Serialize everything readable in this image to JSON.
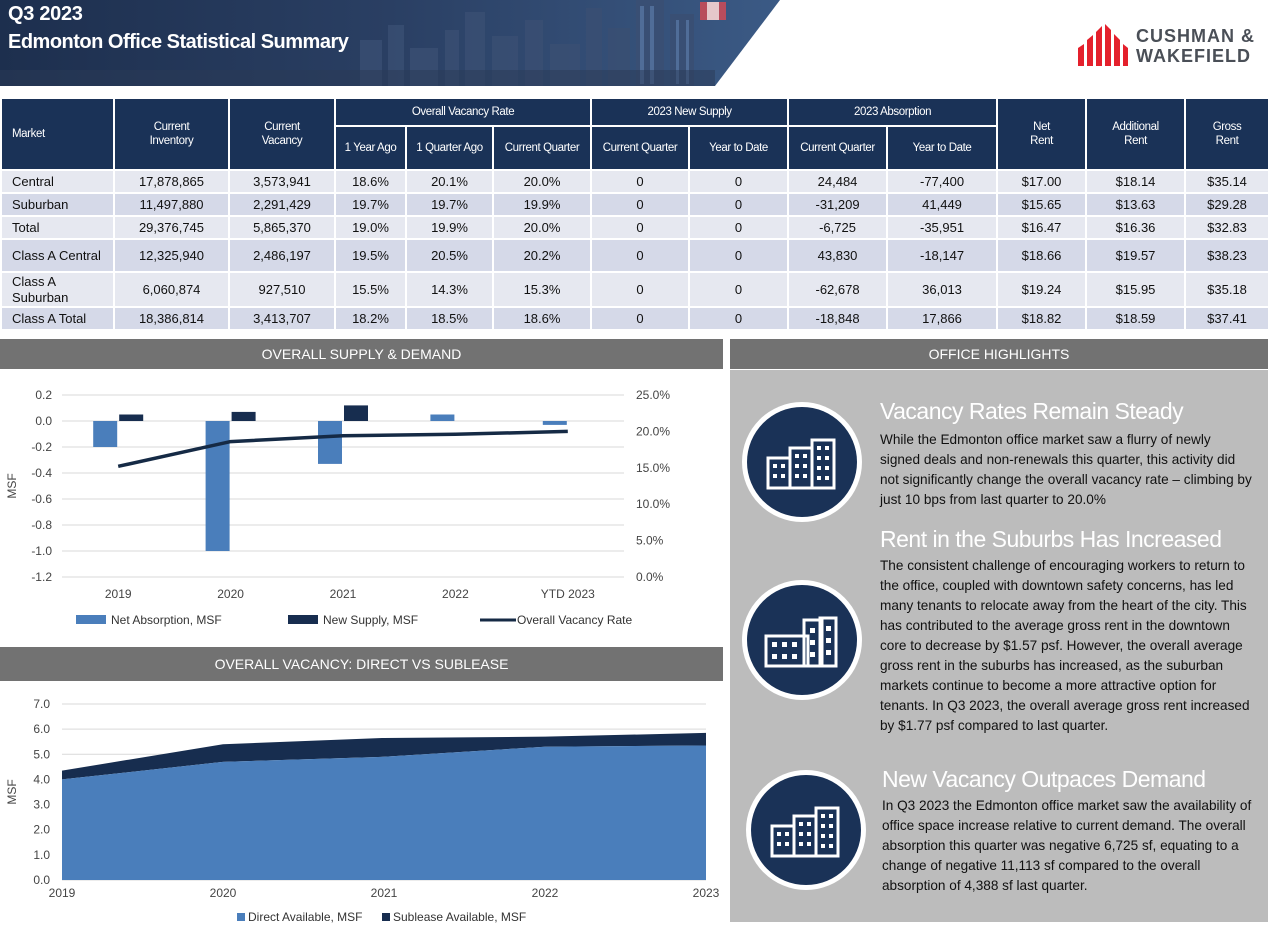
{
  "header": {
    "title_line1": "Q3 2023",
    "title_line2": "Edmonton Office Statistical Summary",
    "logo_line1": "CUSHMAN &",
    "logo_line2": "WAKEFIELD"
  },
  "table": {
    "headers": {
      "market": "Market",
      "inventory": "Current\nInventory",
      "vacancy": "Current\nVacancy",
      "vacancy_rate_group": "Overall Vacancy Rate",
      "year_ago": "1 Year Ago",
      "quarter_ago": "1 Quarter Ago",
      "current_quarter": "Current Quarter",
      "new_supply_group": "2023 New Supply",
      "supply_current_quarter": "Current Quarter",
      "supply_ytd": "Year to Date",
      "absorption_group": "2023 Absorption",
      "absorption_current_quarter": "Current Quarter",
      "absorption_ytd": "Year to Date",
      "net_rent": "Net\nRent",
      "additional_rent": "Additional\nRent",
      "gross_rent": "Gross\nRent"
    },
    "rows": [
      [
        "Central",
        "17,878,865",
        "3,573,941",
        "18.6%",
        "20.1%",
        "20.0%",
        "0",
        "0",
        "24,484",
        "-77,400",
        "$17.00",
        "$18.14",
        "$35.14"
      ],
      [
        "Suburban",
        "11,497,880",
        "2,291,429",
        "19.7%",
        "19.7%",
        "19.9%",
        "0",
        "0",
        "-31,209",
        "41,449",
        "$15.65",
        "$13.63",
        "$29.28"
      ],
      [
        "Total",
        "29,376,745",
        "5,865,370",
        "19.0%",
        "19.9%",
        "20.0%",
        "0",
        "0",
        "-6,725",
        "-35,951",
        "$16.47",
        "$16.36",
        "$32.83"
      ],
      [
        "Class A Central",
        "12,325,940",
        "2,486,197",
        "19.5%",
        "20.5%",
        "20.2%",
        "0",
        "0",
        "43,830",
        "-18,147",
        "$18.66",
        "$19.57",
        "$38.23"
      ],
      [
        "Class A Suburban",
        "6,060,874",
        "927,510",
        "15.5%",
        "14.3%",
        "15.3%",
        "0",
        "0",
        "-62,678",
        "36,013",
        "$19.24",
        "$15.95",
        "$35.18"
      ],
      [
        "Class A Total",
        "18,386,814",
        "3,413,707",
        "18.2%",
        "18.5%",
        "18.6%",
        "0",
        "0",
        "-18,848",
        "17,866",
        "$18.82",
        "$18.59",
        "$37.41"
      ]
    ]
  },
  "sections": {
    "supply_demand": "OVERALL SUPPLY & DEMAND",
    "highlights": "OFFICE HIGHLIGHTS",
    "vacancy": "OVERALL VACANCY: DIRECT VS SUBLEASE"
  },
  "chart_data": [
    {
      "type": "bar",
      "categories": [
        "2019",
        "2020",
        "2021",
        "2022",
        "YTD 2023"
      ],
      "series": [
        {
          "name": "Net Absorption, MSF",
          "type": "bar",
          "values": [
            -0.2,
            -1.0,
            -0.33,
            0.05,
            -0.03
          ],
          "color": "#4a7ebb"
        },
        {
          "name": "New Supply, MSF",
          "type": "bar",
          "values": [
            0.05,
            0.07,
            0.12,
            0.0,
            0.0
          ],
          "color": "#172d4f"
        },
        {
          "name": "Overall Vacancy Rate",
          "type": "line",
          "axis": "right",
          "values": [
            15.2,
            18.6,
            19.4,
            19.6,
            20.0
          ],
          "color": "#152a45"
        }
      ],
      "ylabel": "MSF",
      "ylim": [
        -1.2,
        0.2
      ],
      "yticks": [
        0.2,
        0.0,
        -0.2,
        -0.4,
        -0.6,
        -0.8,
        -1.0,
        -1.2
      ],
      "y2lim": [
        0,
        25
      ],
      "y2ticks": [
        25.0,
        20.0,
        15.0,
        10.0,
        5.0,
        0.0
      ],
      "grid": true,
      "legend": "bottom"
    },
    {
      "type": "area",
      "x": [
        "2019",
        "2020",
        "2021",
        "2022",
        "2023"
      ],
      "series": [
        {
          "name": "Direct Available, MSF",
          "values": [
            4.0,
            4.7,
            4.9,
            5.3,
            5.35
          ],
          "color": "#4a7ebb"
        },
        {
          "name": "Sublease Available, MSF",
          "values": [
            0.35,
            0.7,
            0.75,
            0.4,
            0.5
          ],
          "color": "#172d4f"
        }
      ],
      "stacked": true,
      "ylabel": "MSF",
      "ylim": [
        0,
        7
      ],
      "yticks": [
        7.0,
        6.0,
        5.0,
        4.0,
        3.0,
        2.0,
        1.0,
        0.0
      ],
      "grid": true,
      "legend": "bottom"
    }
  ],
  "highlights": [
    {
      "title": "Vacancy Rates Remain Steady",
      "body": "While the Edmonton office market saw a flurry of newly signed deals and non-renewals this quarter, this activity did not significantly change the overall vacancy rate – climbing by just 10 bps from last quarter to 20.0%",
      "icon": "office-buildings-icon"
    },
    {
      "title": "Rent in the Suburbs Has Increased",
      "body": "The consistent challenge of encouraging workers to return to the office, coupled with downtown safety concerns, has led many tenants to relocate away from the heart of the city. This has contributed to the average gross rent in the downtown core to decrease by $1.57 psf. However, the overall average gross rent in the suburbs has increased, as the suburban markets continue to become a more attractive option for tenants. In Q3 2023, the overall average gross rent increased by $1.77 psf compared to last quarter.",
      "icon": "suburban-buildings-icon"
    },
    {
      "title": "New Vacancy Outpaces Demand",
      "body": "In Q3 2023 the Edmonton office market saw the availability of office space increase relative to current demand. The overall absorption this quarter was negative 6,725 sf, equating to a change of negative 11,113 sf compared to the overall absorption of 4,388 sf last quarter.",
      "icon": "office-buildings-icon"
    }
  ],
  "colors": {
    "navy": "#1a3257",
    "accent_blue": "#4a7ebb",
    "section_gray": "#727272",
    "panel_gray": "#bcbcbc",
    "logo_red": "#e4202c"
  }
}
